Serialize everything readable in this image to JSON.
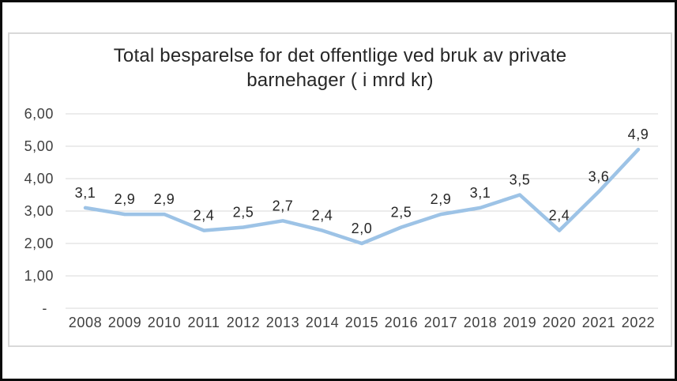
{
  "window": {
    "frame_color": "#0a0a0a",
    "background": "#ffffff",
    "chart_border_color": "#d9d9d9"
  },
  "chart_data": {
    "type": "line",
    "title": "Total besparelse for det offentlige ved bruk av private barnehager ( i mrd kr)",
    "categories": [
      "2008",
      "2009",
      "2010",
      "2011",
      "2012",
      "2013",
      "2014",
      "2015",
      "2016",
      "2017",
      "2018",
      "2019",
      "2020",
      "2021",
      "2022"
    ],
    "series": [
      {
        "name": "Total besparelse",
        "values": [
          3.1,
          2.9,
          2.9,
          2.4,
          2.5,
          2.7,
          2.4,
          2.0,
          2.5,
          2.9,
          3.1,
          3.5,
          2.4,
          3.6,
          4.9
        ],
        "point_labels": [
          "3,1",
          "2,9",
          "2,9",
          "2,4",
          "2,5",
          "2,7",
          "2,4",
          "2,0",
          "2,5",
          "2,9",
          "3,1",
          "3,5",
          "2,4",
          "3,6",
          "4,9"
        ]
      }
    ],
    "xlabel": "",
    "ylabel": "",
    "ylim": [
      0,
      6
    ],
    "y_ticks": [
      {
        "value": 6,
        "label": "6,00",
        "dx": 0
      },
      {
        "value": 5,
        "label": "5,00",
        "dx": 0
      },
      {
        "value": 4,
        "label": "4,00",
        "dx": 0
      },
      {
        "value": 3,
        "label": "3,00",
        "dx": 0
      },
      {
        "value": 2,
        "label": "2,00",
        "dx": 0
      },
      {
        "value": 1,
        "label": "1,00",
        "dx": 0
      },
      {
        "value": 0,
        "label": "-",
        "dx": -8
      }
    ],
    "grid": true,
    "grid_lines": "horizontal-only",
    "legend_position": "none",
    "line_color": "#9dc3e6",
    "grid_color": "#d9d9d9",
    "data_label_color": "#262626",
    "axis_label_color": "#3f3f3f"
  }
}
